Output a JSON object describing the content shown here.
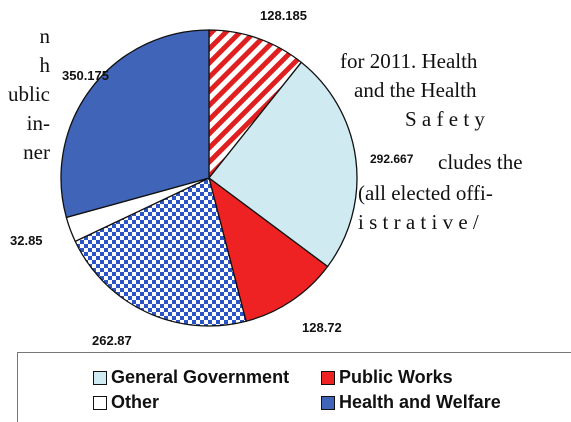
{
  "body_text": {
    "left_fragments": [
      "n",
      "h",
      "ublic",
      "in-",
      "ner"
    ],
    "right_lines": [
      "for 2011. Health",
      "and the Health",
      "S a f e t y",
      "cludes the",
      "(all elected offi-",
      "i s t r a t i v e /"
    ]
  },
  "chart_data": {
    "type": "pie",
    "title": "",
    "slices": [
      {
        "label": "128.185",
        "value": 128.185,
        "color": "#e02020",
        "pattern": "diagonal-stripes"
      },
      {
        "label": "292.667",
        "value": 292.667,
        "color": "#cfeaf0",
        "pattern": "solid"
      },
      {
        "label": "128.72",
        "value": 128.72,
        "color": "#ee2222",
        "pattern": "solid"
      },
      {
        "label": "262.87",
        "value": 262.87,
        "color": "#2b54c8",
        "pattern": "checkered"
      },
      {
        "label": "32.85",
        "value": 32.85,
        "color": "#ffffff",
        "pattern": "solid"
      },
      {
        "label": "350.175",
        "value": 350.175,
        "color": "#3f64b8",
        "pattern": "solid"
      }
    ],
    "legend": {
      "placement": "bottom",
      "entries": [
        {
          "label": "General Government",
          "color": "#cfeaf0"
        },
        {
          "label": "Public Works",
          "color": "#ee2222"
        },
        {
          "label": "Other",
          "color": "#ffffff"
        },
        {
          "label": "Health and Welfare",
          "color": "#3f64b8"
        }
      ]
    }
  }
}
